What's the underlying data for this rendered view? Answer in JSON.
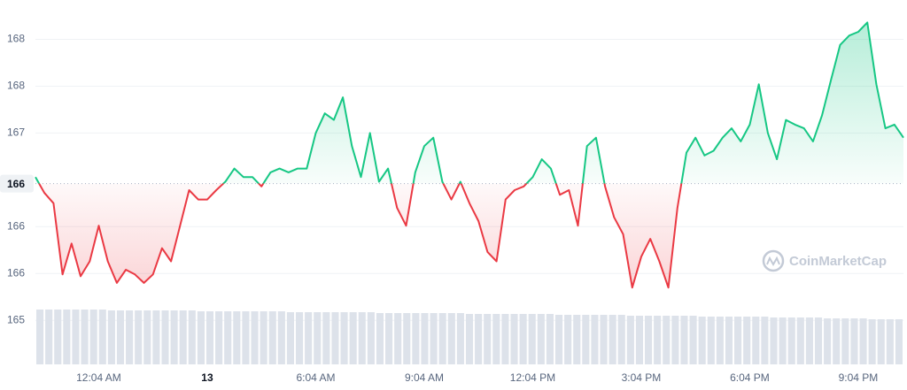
{
  "chart_data": {
    "type": "line",
    "up_color": "#16c784",
    "down_color": "#ea3943",
    "values": [
      166.53,
      166.36,
      166.25,
      165.49,
      165.82,
      165.47,
      165.63,
      166.01,
      165.63,
      165.4,
      165.54,
      165.49,
      165.4,
      165.49,
      165.77,
      165.63,
      166.01,
      166.39,
      166.29,
      166.29,
      166.39,
      166.48,
      166.62,
      166.53,
      166.53,
      166.43,
      166.58,
      166.62,
      166.58,
      166.62,
      166.62,
      167.0,
      167.21,
      167.14,
      167.38,
      166.86,
      166.53,
      167.0,
      166.48,
      166.62,
      166.2,
      166.01,
      166.58,
      166.86,
      166.95,
      166.48,
      166.29,
      166.48,
      166.25,
      166.06,
      165.73,
      165.63,
      166.29,
      166.39,
      166.43,
      166.53,
      166.72,
      166.62,
      166.34,
      166.39,
      166.01,
      166.86,
      166.95,
      166.43,
      166.1,
      165.92,
      165.35,
      165.68,
      165.87,
      165.63,
      165.35,
      166.2,
      166.79,
      166.95,
      166.76,
      166.81,
      166.95,
      167.05,
      166.91,
      167.09,
      167.52,
      167.0,
      166.72,
      167.14,
      167.09,
      167.05,
      166.91,
      167.19,
      167.57,
      167.94,
      168.04,
      168.08,
      168.18,
      167.52,
      167.05,
      167.09,
      166.95
    ],
    "volume": {
      "color": "#dde2ea",
      "axis": "y2",
      "values": [
        62,
        62,
        62,
        62,
        62,
        62,
        62,
        62,
        61,
        61,
        61,
        61,
        61,
        61,
        61,
        61,
        61,
        61,
        60,
        60,
        60,
        60,
        60,
        60,
        60,
        60,
        60,
        60,
        59,
        59,
        59,
        59,
        59,
        59,
        59,
        59,
        59,
        59,
        58,
        58,
        58,
        58,
        58,
        58,
        58,
        58,
        58,
        58,
        57,
        57,
        57,
        57,
        57,
        57,
        57,
        57,
        57,
        57,
        56,
        56,
        56,
        56,
        56,
        56,
        56,
        56,
        55,
        55,
        55,
        55,
        55,
        55,
        55,
        55,
        54,
        54,
        54,
        54,
        54,
        54,
        54,
        54,
        53,
        53,
        53,
        53,
        53,
        53,
        52,
        52,
        52,
        52,
        52,
        51,
        51,
        51,
        51
      ]
    },
    "y2lim": [
      0,
      70
    ],
    "baseline": {
      "value": 166.46,
      "label": "166"
    },
    "ylim": [
      164.53,
      168.42
    ],
    "yticks": [
      165,
      {
        "value": 165.5,
        "label": "166"
      },
      166,
      167,
      {
        "value": 167.5,
        "label": "168"
      },
      168
    ],
    "xlim": [
      0,
      96
    ],
    "xticks": [
      {
        "value": 7,
        "label": "12:04 AM"
      },
      {
        "value": 19,
        "label": "13",
        "bold": true
      },
      {
        "value": 31,
        "label": "6:04 AM"
      },
      {
        "value": 43,
        "label": "9:04 AM"
      },
      {
        "value": 55,
        "label": "12:04 PM"
      },
      {
        "value": 67,
        "label": "3:04 PM"
      },
      {
        "value": 79,
        "label": "6:04 PM"
      },
      {
        "value": 91,
        "label": "9:04 PM"
      }
    ],
    "grid": true,
    "watermark": "CoinMarketCap"
  }
}
